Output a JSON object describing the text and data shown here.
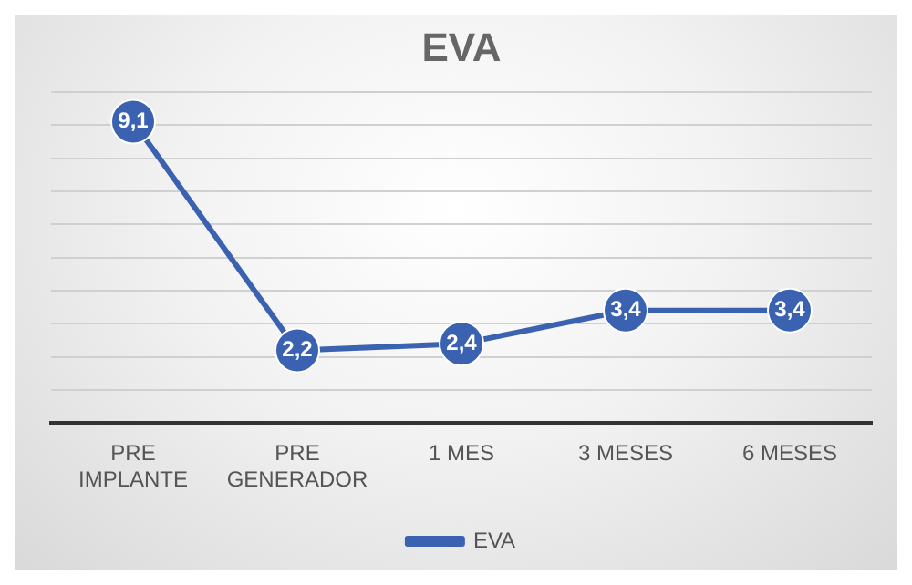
{
  "chart_data": {
    "type": "line",
    "title": "EVA",
    "categories": [
      "PRE\nIMPLANTE",
      "PRE\nGENERADOR",
      "1 MES",
      "3 MESES",
      "6 MESES"
    ],
    "series": [
      {
        "name": "EVA",
        "color": "#3a62b0",
        "values": [
          9.1,
          2.2,
          2.4,
          3.4,
          3.4
        ],
        "value_labels": [
          "9,1",
          "2,2",
          "2,4",
          "3,4",
          "3,4"
        ]
      }
    ],
    "ylim": [
      0,
      10
    ],
    "yticks": [
      {
        "value": 0,
        "label": null
      },
      {
        "value": 1,
        "label": null
      },
      {
        "value": 2,
        "label": null
      },
      {
        "value": 3,
        "label": null
      },
      {
        "value": 4,
        "label": null
      },
      {
        "value": 5,
        "label": null
      },
      {
        "value": 6,
        "label": null
      },
      {
        "value": 7,
        "label": null
      },
      {
        "value": 8,
        "label": null
      },
      {
        "value": 9,
        "label": null
      },
      {
        "value": 10,
        "label": null
      }
    ],
    "tick_labels": "x",
    "grid": "y",
    "legend": "bottom",
    "marker": "circle",
    "line_style": "solid"
  }
}
